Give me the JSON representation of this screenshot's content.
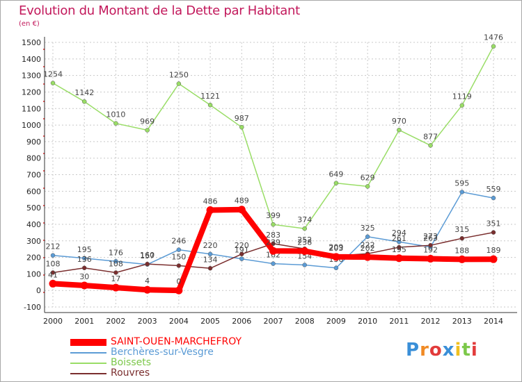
{
  "title": "Evolution du Montant de la Dette par Habitant",
  "subtitle": "(en €)",
  "logo": "Proxiti",
  "chart_data": {
    "type": "line",
    "x": [
      "2000",
      "2001",
      "2002",
      "2003",
      "2004",
      "2005",
      "2006",
      "2007",
      "2008",
      "2009",
      "2010",
      "2011",
      "2012",
      "2013",
      "2014"
    ],
    "ylim": [
      -100,
      1500
    ],
    "yticks": [
      -100,
      0,
      100,
      200,
      300,
      400,
      500,
      600,
      700,
      800,
      900,
      1000,
      1100,
      1200,
      1300,
      1400,
      1500
    ],
    "grid": true,
    "legend_position": "bottom-left",
    "series": [
      {
        "name": "SAINT-OUEN-MARCHEFROY",
        "color": "#ff0000",
        "values": [
          41,
          30,
          17,
          4,
          0,
          486,
          489,
          239,
          238,
          203,
          202,
          195,
          192,
          188,
          189
        ]
      },
      {
        "name": "Berchères-sur-Vesgre",
        "color": "#5b9bd5",
        "values": [
          212,
          195,
          176,
          157,
          246,
          220,
          191,
          162,
          154,
          136,
          325,
          294,
          263,
          595,
          559
        ]
      },
      {
        "name": "Boissets",
        "color": "#99dd66",
        "values": [
          1254,
          1142,
          1010,
          969,
          1250,
          1121,
          987,
          399,
          374,
          649,
          629,
          970,
          877,
          1119,
          1476
        ]
      },
      {
        "name": "Rouvres",
        "color": "#7a2e2e",
        "values": [
          108,
          136,
          108,
          160,
          150,
          134,
          220,
          283,
          252,
          209,
          222,
          261,
          273,
          315,
          351
        ]
      }
    ]
  }
}
